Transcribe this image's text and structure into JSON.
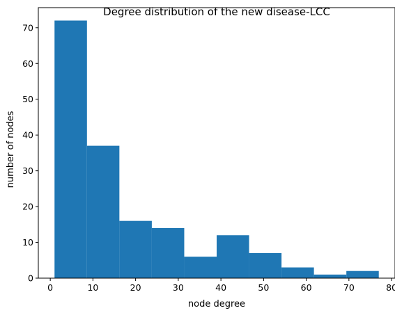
{
  "chart_data": {
    "type": "bar",
    "title": "Degree distribution of the new disease-LCC",
    "xlabel": "node degree",
    "ylabel": "number of nodes",
    "bin_edges": [
      1,
      8.6,
      16.2,
      23.8,
      31.4,
      39,
      46.6,
      54.2,
      61.8,
      69.4,
      77
    ],
    "values": [
      72,
      37,
      16,
      14,
      6,
      12,
      7,
      3,
      1,
      2
    ],
    "xlim": [
      -2.8,
      80.8
    ],
    "ylim": [
      0,
      75.6
    ],
    "xticks": [
      0,
      10,
      20,
      30,
      40,
      50,
      60,
      70,
      80
    ],
    "yticks": [
      0,
      10,
      20,
      30,
      40,
      50,
      60,
      70
    ],
    "bar_color": "#1f77b4",
    "grid": false,
    "legend": false
  }
}
